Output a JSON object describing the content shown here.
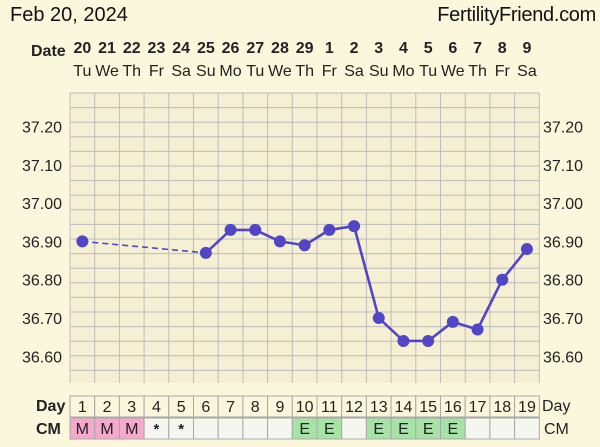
{
  "header": {
    "date": "Feb 20, 2024",
    "brand": "FertilityFriend.com"
  },
  "colors": {
    "background": "#fbf7dd",
    "grid": "#bcbcbc",
    "line": "#5146c6",
    "cm_m": "#f4a9cd",
    "cm_e": "#a7e3a6",
    "cm_empty": "#f6f6f0"
  },
  "labels": {
    "date_row": "Date",
    "day_row": "Day",
    "cm_row": "CM"
  },
  "chart_data": {
    "type": "line",
    "ylim": [
      36.55,
      37.25
    ],
    "y_ticks": [
      "37.20",
      "37.10",
      "37.00",
      "36.90",
      "36.80",
      "36.70",
      "36.60"
    ],
    "dates": [
      "20",
      "21",
      "22",
      "23",
      "24",
      "25",
      "26",
      "27",
      "28",
      "29",
      "1",
      "2",
      "3",
      "4",
      "5",
      "6",
      "7",
      "8",
      "9"
    ],
    "weekdays": [
      "Tu",
      "We",
      "Th",
      "Fr",
      "Sa",
      "Su",
      "Mo",
      "Tu",
      "We",
      "Th",
      "Fr",
      "Sa",
      "Su",
      "Mo",
      "Tu",
      "We",
      "Th",
      "Fr",
      "Sa"
    ],
    "cycle_days": [
      "1",
      "2",
      "3",
      "4",
      "5",
      "6",
      "7",
      "8",
      "9",
      "10",
      "11",
      "12",
      "13",
      "14",
      "15",
      "16",
      "17",
      "18",
      "19"
    ],
    "cervical_mucus": [
      "M",
      "M",
      "M",
      "*",
      "*",
      "",
      "",
      "",
      "",
      "E",
      "E",
      "",
      "E",
      "E",
      "E",
      "E",
      "",
      "",
      ""
    ],
    "cm_end_label": "CM",
    "temperatures": [
      36.9,
      null,
      null,
      null,
      null,
      36.87,
      36.93,
      36.93,
      36.9,
      36.89,
      36.93,
      36.94,
      36.7,
      36.64,
      36.64,
      36.69,
      36.67,
      36.8,
      36.88
    ],
    "dashed_segments": [
      [
        1,
        6
      ]
    ]
  }
}
